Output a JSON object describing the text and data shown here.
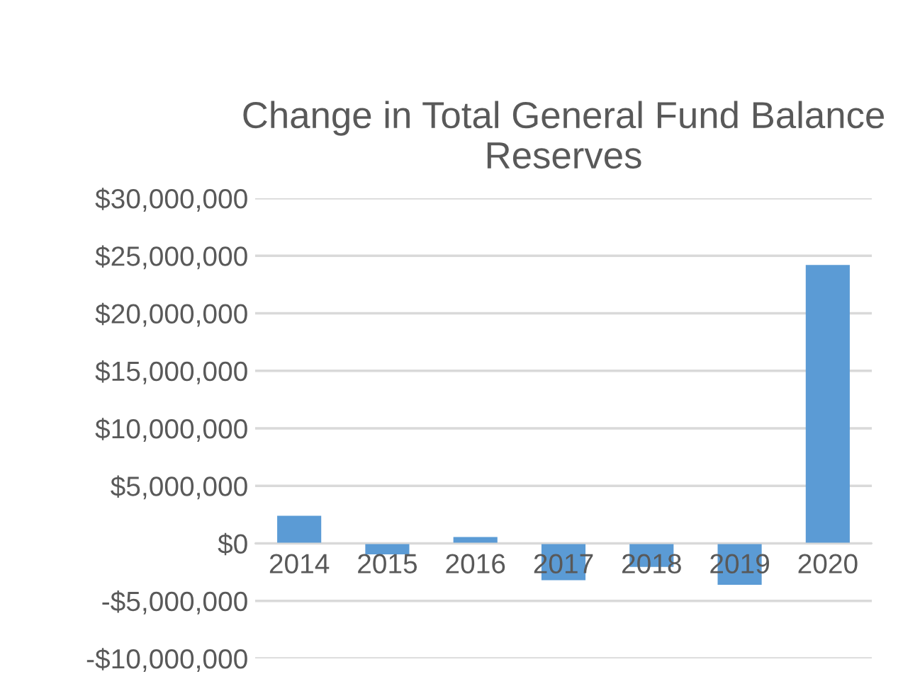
{
  "chart_data": {
    "type": "bar",
    "title": "Change in Total General Fund Balance Reserves",
    "categories": [
      "2014",
      "2015",
      "2016",
      "2017",
      "2018",
      "2019",
      "2020"
    ],
    "values": [
      2400000,
      -950000,
      550000,
      -3200000,
      -2050000,
      -3600000,
      24200000
    ],
    "color": "#5b9bd5",
    "ylim": [
      -10000000,
      30000000
    ],
    "yticks": [
      {
        "value": -10000000,
        "label": "-$10,000,000"
      },
      {
        "value": -5000000,
        "label": "-$5,000,000"
      },
      {
        "value": 0,
        "label": "$0"
      },
      {
        "value": 5000000,
        "label": "$5,000,000"
      },
      {
        "value": 10000000,
        "label": "$10,000,000"
      },
      {
        "value": 15000000,
        "label": "$15,000,000"
      },
      {
        "value": 20000000,
        "label": "$20,000,000"
      },
      {
        "value": 25000000,
        "label": "$25,000,000"
      },
      {
        "value": 30000000,
        "label": "$30,000,000"
      }
    ],
    "grid": "y"
  }
}
